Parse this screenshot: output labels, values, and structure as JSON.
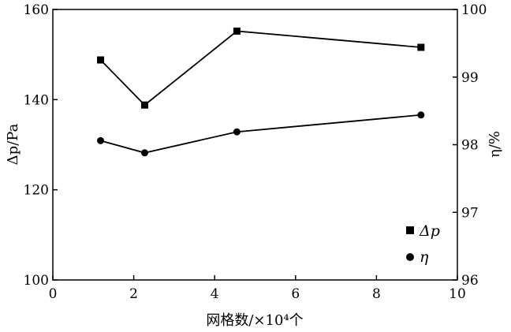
{
  "chart_data": {
    "type": "line",
    "title": "",
    "x_axis": {
      "label": "网格数/×10⁴个",
      "range": [
        0,
        10
      ],
      "ticks": [
        0,
        2,
        4,
        6,
        8,
        10
      ],
      "tick_labels": [
        "0",
        "2",
        "4",
        "6",
        "8",
        "10"
      ]
    },
    "y_axis_left": {
      "label": "Δp/Pa",
      "range": [
        100,
        160
      ],
      "ticks": [
        100,
        120,
        140,
        160
      ],
      "tick_labels": [
        "100",
        "120",
        "140",
        "160"
      ]
    },
    "y_axis_right": {
      "label": "η/%",
      "range": [
        96,
        100
      ],
      "ticks": [
        96,
        97,
        98,
        99,
        100
      ],
      "tick_labels": [
        "96",
        "97",
        "98",
        "99",
        "100"
      ]
    },
    "series": [
      {
        "name": "Δp",
        "axis": "left",
        "marker": "square",
        "x": [
          1.18,
          2.27,
          4.55,
          9.1
        ],
        "values": [
          148.8,
          138.8,
          155.2,
          151.6
        ]
      },
      {
        "name": "η",
        "axis": "right",
        "marker": "circle",
        "x": [
          1.18,
          2.27,
          4.55,
          9.1
        ],
        "values": [
          98.06,
          97.88,
          98.19,
          98.44
        ]
      }
    ],
    "legend": {
      "position": "bottom-right",
      "entries": [
        "Δp",
        "η"
      ]
    },
    "grid": false
  }
}
